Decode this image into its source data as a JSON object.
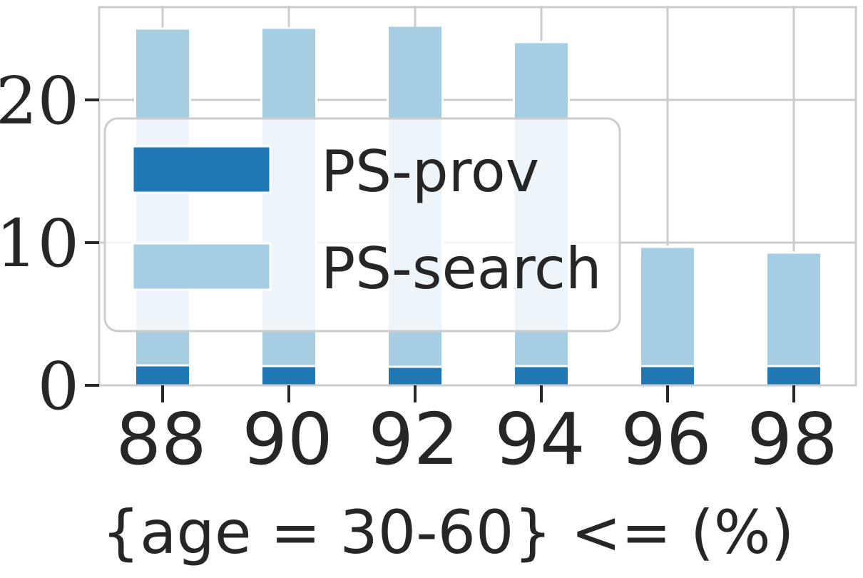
{
  "chart_data": {
    "type": "bar",
    "stacked": true,
    "categories": [
      "88",
      "90",
      "92",
      "94",
      "96",
      "98"
    ],
    "series": [
      {
        "name": "PS-prov",
        "values": [
          1.4,
          1.35,
          1.3,
          1.35,
          1.35,
          1.35
        ],
        "color": "#1f77b4"
      },
      {
        "name": "PS-search",
        "values": [
          23.6,
          23.7,
          23.9,
          22.7,
          8.35,
          7.95
        ],
        "color": "#a6cee3"
      }
    ],
    "xlabel": "{age = 30-60} <= (%)",
    "ylabel": "",
    "ylim": [
      0,
      26.5
    ],
    "yticks": [
      0,
      10,
      20
    ],
    "grid": true,
    "legend": {
      "position": "center-left",
      "entries": [
        "PS-prov",
        "PS-search"
      ]
    }
  }
}
